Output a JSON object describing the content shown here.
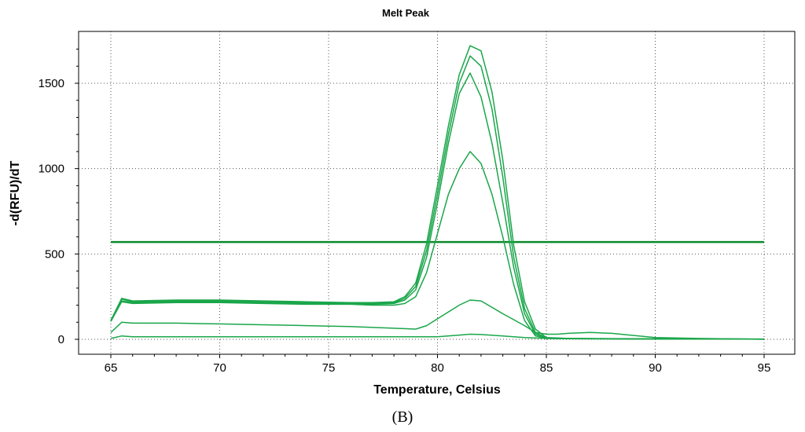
{
  "chart_data": {
    "type": "line",
    "title": "Melt Peak",
    "xlabel": "Temperature, Celsius",
    "ylabel": "-d(RFU)/dT",
    "xlim": [
      65,
      95
    ],
    "ylim": [
      -30,
      1830
    ],
    "xticks": [
      65,
      70,
      75,
      80,
      85,
      90,
      95
    ],
    "yticks": [
      0,
      500,
      1000,
      1500
    ],
    "grid": true,
    "grid_style": "dotted",
    "line_color": "#1aa64a",
    "threshold_color": "#0a8a2a",
    "threshold": 570,
    "series": [
      {
        "x": [
          65,
          65.5,
          66,
          68,
          70,
          72,
          74,
          76,
          77,
          78,
          78.5,
          79,
          79.5,
          80,
          80.5,
          81,
          81.5,
          82,
          82.5,
          83,
          83.5,
          84,
          84.5,
          85,
          86,
          88,
          90,
          92,
          95
        ],
        "values": [
          110,
          240,
          225,
          230,
          230,
          225,
          220,
          215,
          215,
          220,
          250,
          330,
          560,
          900,
          1250,
          1550,
          1720,
          1690,
          1450,
          1050,
          550,
          220,
          60,
          10,
          5,
          3,
          2,
          2,
          1
        ]
      },
      {
        "x": [
          65,
          65.5,
          66,
          68,
          70,
          72,
          74,
          76,
          77,
          78,
          78.5,
          79,
          79.5,
          80,
          80.5,
          81,
          81.5,
          82,
          82.5,
          83,
          83.5,
          84,
          84.5,
          85,
          86,
          88,
          90,
          92,
          95
        ],
        "values": [
          110,
          235,
          220,
          225,
          225,
          220,
          215,
          215,
          210,
          215,
          240,
          310,
          520,
          850,
          1200,
          1500,
          1660,
          1600,
          1350,
          950,
          480,
          180,
          40,
          8,
          5,
          3,
          2,
          2,
          1
        ]
      },
      {
        "x": [
          65,
          65.5,
          66,
          68,
          70,
          72,
          74,
          76,
          77,
          78,
          78.5,
          79,
          79.5,
          80,
          80.5,
          81,
          81.5,
          82,
          82.5,
          83,
          83.5,
          84,
          84.5,
          85,
          86,
          88,
          90,
          92,
          95
        ],
        "values": [
          105,
          225,
          215,
          220,
          220,
          215,
          210,
          210,
          205,
          210,
          230,
          290,
          480,
          800,
          1150,
          1440,
          1560,
          1420,
          1150,
          800,
          420,
          150,
          30,
          6,
          4,
          3,
          2,
          2,
          1
        ]
      },
      {
        "x": [
          65,
          65.5,
          66,
          68,
          70,
          72,
          74,
          76,
          77,
          78,
          78.5,
          79,
          79.5,
          80,
          80.5,
          81,
          81.5,
          82,
          82.5,
          83,
          83.5,
          84,
          84.5,
          85,
          86,
          88,
          90,
          92,
          95
        ],
        "values": [
          105,
          220,
          210,
          215,
          215,
          210,
          205,
          205,
          200,
          200,
          210,
          250,
          390,
          620,
          850,
          1000,
          1100,
          1030,
          850,
          600,
          320,
          110,
          20,
          5,
          3,
          2,
          2,
          1,
          1
        ]
      },
      {
        "x": [
          65,
          65.5,
          66,
          68,
          70,
          72,
          74,
          76,
          78,
          79,
          79.5,
          80,
          81,
          81.5,
          82,
          83,
          84,
          84.5,
          85,
          85.5,
          86,
          87,
          88,
          90,
          92,
          95
        ],
        "values": [
          40,
          100,
          95,
          95,
          90,
          85,
          80,
          75,
          65,
          60,
          80,
          120,
          200,
          230,
          225,
          150,
          80,
          40,
          30,
          30,
          35,
          40,
          35,
          10,
          5,
          0
        ]
      },
      {
        "x": [
          65,
          65.5,
          66,
          70,
          75,
          80,
          81,
          81.5,
          82,
          83,
          84,
          85,
          90,
          95
        ],
        "values": [
          5,
          20,
          15,
          15,
          15,
          15,
          25,
          30,
          28,
          20,
          10,
          5,
          3,
          2
        ]
      }
    ]
  },
  "figure_caption": "(B)"
}
